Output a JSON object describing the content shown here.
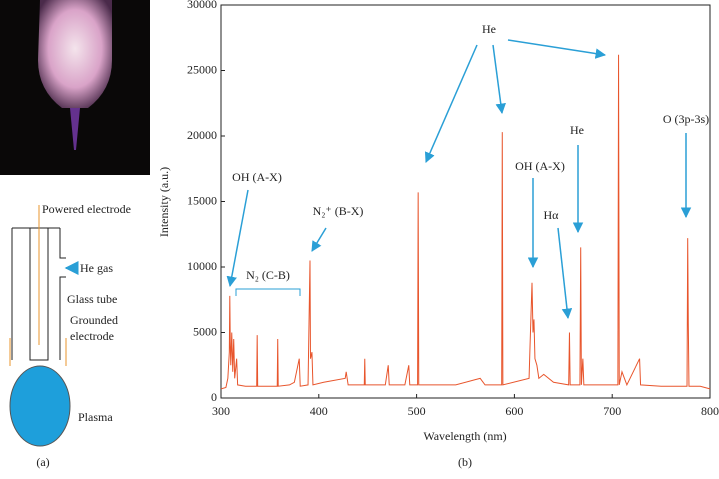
{
  "schematic": {
    "powered": "Powered electrode",
    "gas": "He gas",
    "tube": "Glass tube",
    "grounded": "Grounded electrode",
    "plasma": "Plasma",
    "panel": "(a)"
  },
  "chart_data": {
    "type": "line",
    "panel": "(b)",
    "x_label": "Wavelength (nm)",
    "y_label": "Intensity (a.u.)",
    "color": "#e8552c",
    "xlim": [
      300,
      800
    ],
    "xticks": [
      300,
      400,
      500,
      600,
      700,
      800
    ],
    "ylim": [
      0,
      30000
    ],
    "yticks": [
      0,
      5000,
      10000,
      15000,
      20000,
      25000,
      30000
    ],
    "annotations": [
      "He",
      "OH (A-X)",
      "N₂⁺ (B-X)",
      "N₂ (C-B)",
      "OH (A-X)",
      "Hα",
      "He",
      "O (3p-3s)"
    ],
    "x": [
      300,
      305,
      307,
      308.5,
      309,
      309.5,
      310,
      311,
      312,
      313,
      314,
      316,
      317,
      325,
      336.5,
      337,
      337.5,
      350,
      357.5,
      358,
      358.5,
      370,
      375,
      380,
      381,
      389,
      391,
      391.5,
      393,
      394,
      405,
      427,
      428,
      430,
      446.5,
      447,
      447.5,
      468,
      471,
      472,
      488,
      492,
      493,
      501,
      501.6,
      502.2,
      540,
      560,
      565,
      570,
      587,
      587.6,
      588.2,
      615,
      616,
      618,
      619,
      620,
      621,
      623,
      625,
      630,
      640,
      655.5,
      656.3,
      657,
      667,
      667.8,
      668.5,
      670,
      671,
      705.8,
      706.5,
      707.2,
      710,
      715,
      728,
      729,
      750,
      776.5,
      777.2,
      777.8,
      778.5,
      790,
      800
    ],
    "values": [
      700,
      800,
      1500,
      3500,
      7800,
      4000,
      2500,
      5000,
      2000,
      4500,
      1500,
      3000,
      1000,
      900,
      900,
      4800,
      900,
      900,
      900,
      4500,
      900,
      1000,
      1200,
      3000,
      900,
      1000,
      10500,
      3000,
      3500,
      1000,
      1200,
      1500,
      2000,
      1000,
      1000,
      3000,
      1000,
      1000,
      2500,
      1000,
      1000,
      2500,
      1000,
      1000,
      15700,
      1000,
      1000,
      1400,
      1500,
      1000,
      1000,
      20300,
      1000,
      1500,
      4000,
      8800,
      5000,
      6000,
      3000,
      2500,
      1500,
      1800,
      1200,
      1000,
      5000,
      1000,
      1000,
      11500,
      1000,
      3000,
      1000,
      1000,
      26200,
      1000,
      2000,
      1000,
      3000,
      1000,
      900,
      900,
      12200,
      5700,
      900,
      900,
      700
    ]
  }
}
